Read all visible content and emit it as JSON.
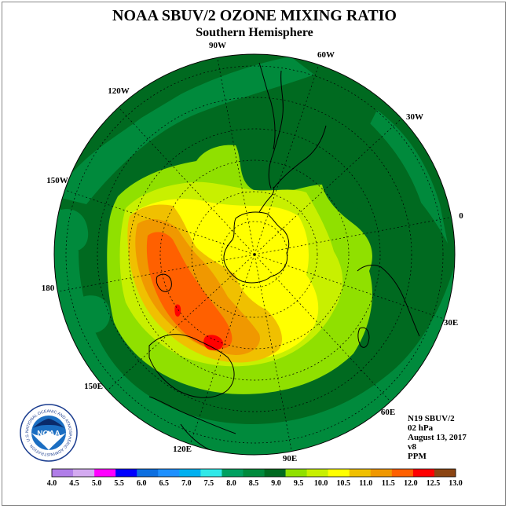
{
  "title": "NOAA SBUV/2 OZONE MIXING RATIO",
  "subtitle": "Southern Hemisphere",
  "longitude_labels": [
    "90W",
    "60W",
    "30W",
    "0",
    "30E",
    "60E",
    "90E",
    "120E",
    "150E",
    "180",
    "150W",
    "120W"
  ],
  "info": {
    "satellite": "N19 SBUV/2",
    "pressure_level": "02 hPa",
    "date": "August 13, 2017",
    "version": "v8",
    "units": "PPM"
  },
  "logo": {
    "text": "NOAA",
    "ring_text": "NATIONAL OCEANIC AND ATMOSPHERIC ADMINISTRATION · U.S. DEPARTMENT OF COMMERCE"
  },
  "colorbar": {
    "ticks": [
      "4.0",
      "4.5",
      "5.0",
      "5.5",
      "6.0",
      "6.5",
      "7.0",
      "7.5",
      "8.0",
      "8.5",
      "9.0",
      "9.5",
      "10.0",
      "10.5",
      "11.0",
      "11.5",
      "12.0",
      "12.5",
      "13.0"
    ],
    "colors": [
      "#b07ee8",
      "#d3aaf0",
      "#ff00ff",
      "#0000ff",
      "#0d6fe0",
      "#1e90ff",
      "#00b0f0",
      "#30e8e8",
      "#00a060",
      "#008a3c",
      "#006a20",
      "#90e000",
      "#c8f000",
      "#ffff00",
      "#f0c000",
      "#f09800",
      "#ff6000",
      "#ff0000",
      "#8b4513"
    ]
  },
  "colors": {
    "level_8_5": "#008a3c",
    "level_9_0": "#006a20",
    "level_9_5": "#90e000",
    "level_10_0": "#c8f000",
    "level_10_5": "#ffff00",
    "level_11_0": "#f0c000",
    "level_11_5": "#f09800",
    "level_12_0": "#ff6000",
    "level_12_5": "#ff0000"
  }
}
